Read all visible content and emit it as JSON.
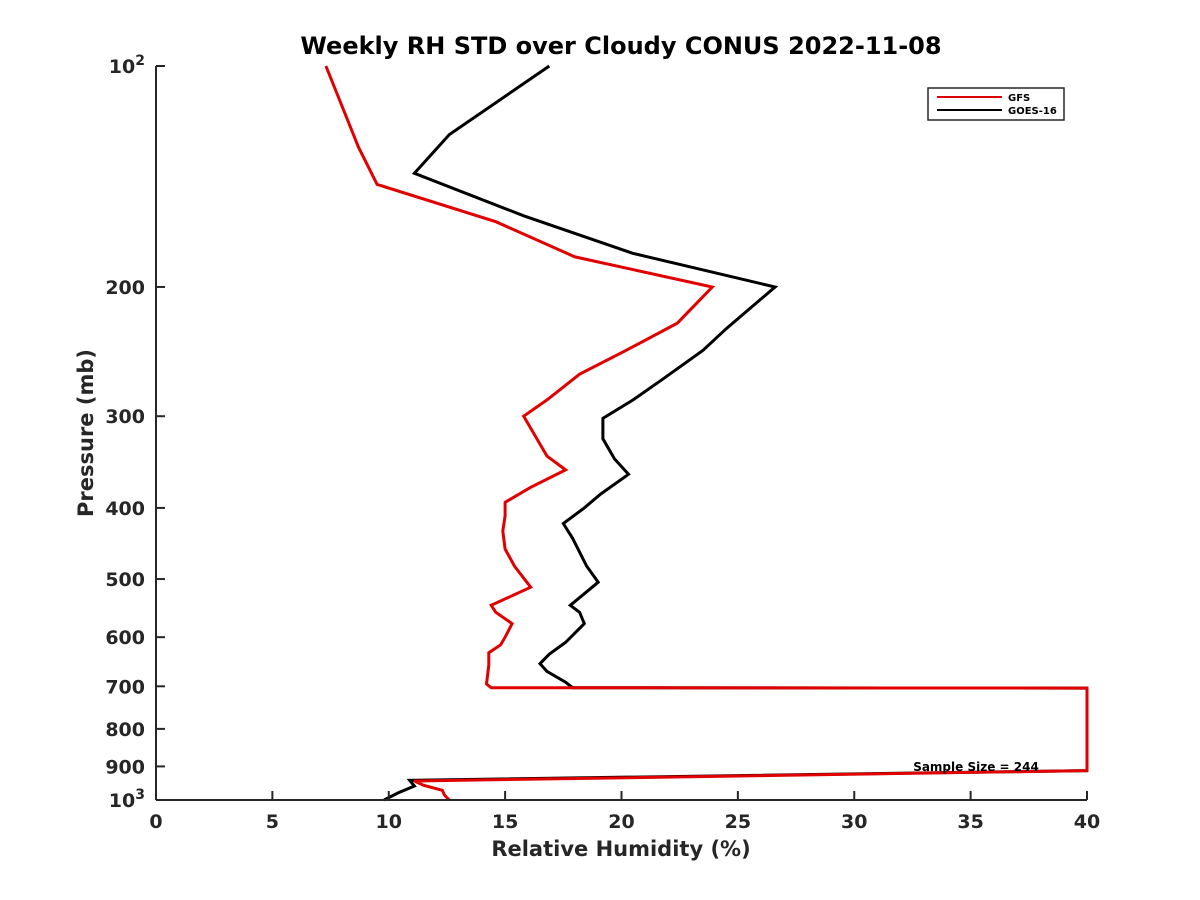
{
  "chart_data": {
    "type": "line",
    "title": "Weekly RH STD over Cloudy CONUS 2022-11-08",
    "xlabel": "Relative Humidity (%)",
    "ylabel": "Pressure (mb)",
    "xlim": [
      0,
      40
    ],
    "ylim": [
      100,
      1000
    ],
    "y_scale": "log",
    "y_reversed": true,
    "x_ticks": [
      0,
      5,
      10,
      15,
      20,
      25,
      30,
      35,
      40
    ],
    "y_ticks": [
      {
        "value": 100,
        "label": "10",
        "sup": "2"
      },
      {
        "value": 200,
        "label": "200"
      },
      {
        "value": 300,
        "label": "300"
      },
      {
        "value": 400,
        "label": "400"
      },
      {
        "value": 500,
        "label": "500"
      },
      {
        "value": 600,
        "label": "600"
      },
      {
        "value": 700,
        "label": "700"
      },
      {
        "value": 800,
        "label": "800"
      },
      {
        "value": 900,
        "label": "900"
      },
      {
        "value": 1000,
        "label": "10",
        "sup": "3"
      }
    ],
    "grid": false,
    "legend_position": "top-right",
    "annotation": "Sample Size = 244",
    "series": [
      {
        "name": "GFS",
        "color": "#e00000",
        "points": [
          [
            12.6,
            1000
          ],
          [
            12.4,
            985
          ],
          [
            12.3,
            970
          ],
          [
            11.5,
            955
          ],
          [
            11.1,
            942
          ],
          [
            40,
            912
          ],
          [
            40,
            704
          ],
          [
            17.8,
            703
          ],
          [
            14.4,
            703
          ],
          [
            14.2,
            695
          ],
          [
            14.3,
            655
          ],
          [
            14.3,
            630
          ],
          [
            14.8,
            615
          ],
          [
            15.0,
            600
          ],
          [
            15.3,
            575
          ],
          [
            14.6,
            555
          ],
          [
            14.4,
            543
          ],
          [
            16.1,
            513
          ],
          [
            15.4,
            480
          ],
          [
            15.0,
            455
          ],
          [
            14.9,
            430
          ],
          [
            15.0,
            410
          ],
          [
            15.0,
            393
          ],
          [
            16.1,
            375
          ],
          [
            17.6,
            355
          ],
          [
            16.8,
            340
          ],
          [
            15.8,
            300
          ],
          [
            16.8,
            285
          ],
          [
            18.2,
            263
          ],
          [
            20.1,
            245
          ],
          [
            22.4,
            224
          ],
          [
            23.9,
            200
          ],
          [
            18.0,
            182
          ],
          [
            14.6,
            163
          ],
          [
            9.5,
            145
          ],
          [
            8.7,
            129
          ],
          [
            7.3,
            100
          ]
        ]
      },
      {
        "name": "GOES-16",
        "color": "#000000",
        "points": [
          [
            9.8,
            1000
          ],
          [
            10.4,
            978
          ],
          [
            11.1,
            957
          ],
          [
            10.9,
            940
          ],
          [
            40,
            912
          ],
          [
            40,
            704
          ],
          [
            17.9,
            703
          ],
          [
            17.6,
            691
          ],
          [
            16.8,
            668
          ],
          [
            16.5,
            652
          ],
          [
            16.9,
            633
          ],
          [
            17.6,
            610
          ],
          [
            18.4,
            575
          ],
          [
            18.2,
            555
          ],
          [
            17.8,
            543
          ],
          [
            19.0,
            505
          ],
          [
            18.5,
            480
          ],
          [
            17.9,
            440
          ],
          [
            17.5,
            420
          ],
          [
            18.4,
            400
          ],
          [
            19.1,
            383
          ],
          [
            20.3,
            360
          ],
          [
            19.7,
            343
          ],
          [
            19.2,
            322
          ],
          [
            19.2,
            302
          ],
          [
            20.5,
            285
          ],
          [
            21.7,
            268
          ],
          [
            23.5,
            244
          ],
          [
            24.5,
            228
          ],
          [
            26.6,
            200
          ],
          [
            20.5,
            180
          ],
          [
            15.8,
            160
          ],
          [
            11.1,
            140
          ],
          [
            12.6,
            124
          ],
          [
            16.9,
            100
          ]
        ]
      }
    ]
  }
}
